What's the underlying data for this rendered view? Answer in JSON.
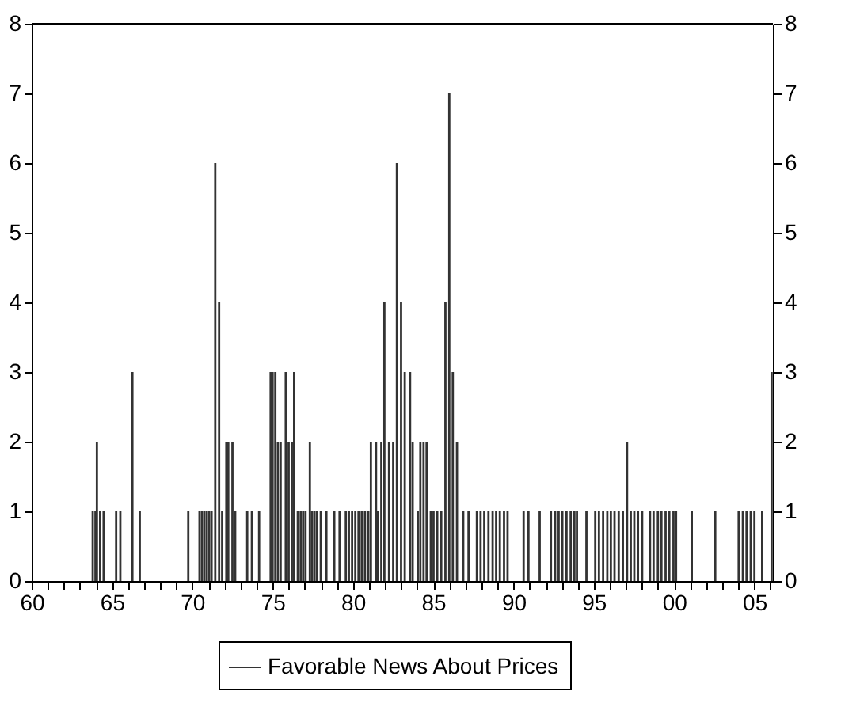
{
  "chart_data": {
    "type": "bar",
    "legend": "bottom",
    "grid": false,
    "x": [
      1963.8,
      1963.97,
      1964.06,
      1964.26,
      1964.48,
      1965.26,
      1965.52,
      1966.27,
      1966.73,
      1969.75,
      1970.45,
      1970.6,
      1970.75,
      1970.9,
      1971.05,
      1971.2,
      1971.43,
      1971.67,
      1971.86,
      1972.12,
      1972.24,
      1972.5,
      1972.67,
      1973.42,
      1973.71,
      1974.16,
      1974.88,
      1975.0,
      1975.17,
      1975.33,
      1975.5,
      1975.82,
      1976.0,
      1976.2,
      1976.34,
      1976.57,
      1976.75,
      1976.9,
      1977.05,
      1977.32,
      1977.45,
      1977.6,
      1977.75,
      1978.0,
      1978.35,
      1978.84,
      1979.17,
      1979.56,
      1979.75,
      1979.95,
      1980.15,
      1980.35,
      1980.55,
      1980.75,
      1980.96,
      1981.12,
      1981.44,
      1981.54,
      1981.77,
      1981.96,
      1982.25,
      1982.51,
      1982.74,
      1983.0,
      1983.23,
      1983.56,
      1983.72,
      1984.04,
      1984.2,
      1984.4,
      1984.59,
      1984.85,
      1985.02,
      1985.25,
      1985.5,
      1985.76,
      1986.0,
      1986.22,
      1986.48,
      1986.87,
      1987.2,
      1987.72,
      1987.95,
      1988.18,
      1988.44,
      1988.7,
      1988.92,
      1989.15,
      1989.41,
      1989.63,
      1990.63,
      1990.93,
      1991.63,
      1992.33,
      1992.59,
      1992.81,
      1993.04,
      1993.3,
      1993.56,
      1993.79,
      1993.95,
      1994.54,
      1995.09,
      1995.32,
      1995.58,
      1995.84,
      1996.06,
      1996.29,
      1996.55,
      1996.81,
      1997.07,
      1997.3,
      1997.52,
      1997.75,
      1998.01,
      1998.5,
      1998.72,
      1998.99,
      1999.21,
      1999.47,
      1999.7,
      1999.96,
      2000.12,
      2001.1,
      2002.56,
      2004.02,
      2004.28,
      2004.51,
      2004.77,
      2005.0,
      2005.48,
      2006.07
    ],
    "series": [
      {
        "name": "Favorable News About Prices",
        "color": "#333333",
        "values": [
          1,
          1,
          2,
          1,
          1,
          1,
          1,
          3,
          1,
          1,
          1,
          1,
          1,
          1,
          1,
          1,
          6,
          4,
          1,
          2,
          2,
          2,
          1,
          1,
          1,
          1,
          3,
          3,
          3,
          2,
          2,
          3,
          2,
          2,
          3,
          1,
          1,
          1,
          1,
          2,
          1,
          1,
          1,
          1,
          1,
          1,
          1,
          1,
          1,
          1,
          1,
          1,
          1,
          1,
          1,
          2,
          2,
          1,
          2,
          4,
          2,
          2,
          6,
          4,
          3,
          3,
          2,
          1,
          2,
          2,
          2,
          1,
          1,
          1,
          1,
          4,
          7,
          3,
          2,
          1,
          1,
          1,
          1,
          1,
          1,
          1,
          1,
          1,
          1,
          1,
          1,
          1,
          1,
          1,
          1,
          1,
          1,
          1,
          1,
          1,
          1,
          1,
          1,
          1,
          1,
          1,
          1,
          1,
          1,
          1,
          2,
          1,
          1,
          1,
          1,
          1,
          1,
          1,
          1,
          1,
          1,
          1,
          1,
          1,
          1,
          1,
          1,
          1,
          1,
          1,
          1,
          3
        ]
      }
    ],
    "xlim": [
      1960,
      2006.15
    ],
    "xticks": [
      {
        "value": 1960,
        "label": "60"
      },
      {
        "value": 1961,
        "label": null
      },
      {
        "value": 1962,
        "label": null
      },
      {
        "value": 1963,
        "label": null
      },
      {
        "value": 1964,
        "label": null
      },
      {
        "value": 1965,
        "label": "65"
      },
      {
        "value": 1966,
        "label": null
      },
      {
        "value": 1967,
        "label": null
      },
      {
        "value": 1968,
        "label": null
      },
      {
        "value": 1969,
        "label": null
      },
      {
        "value": 1970,
        "label": "70"
      },
      {
        "value": 1971,
        "label": null
      },
      {
        "value": 1972,
        "label": null
      },
      {
        "value": 1973,
        "label": null
      },
      {
        "value": 1974,
        "label": null
      },
      {
        "value": 1975,
        "label": "75"
      },
      {
        "value": 1976,
        "label": null
      },
      {
        "value": 1977,
        "label": null
      },
      {
        "value": 1978,
        "label": null
      },
      {
        "value": 1979,
        "label": null
      },
      {
        "value": 1980,
        "label": "80"
      },
      {
        "value": 1981,
        "label": null
      },
      {
        "value": 1982,
        "label": null
      },
      {
        "value": 1983,
        "label": null
      },
      {
        "value": 1984,
        "label": null
      },
      {
        "value": 1985,
        "label": "85"
      },
      {
        "value": 1986,
        "label": null
      },
      {
        "value": 1987,
        "label": null
      },
      {
        "value": 1988,
        "label": null
      },
      {
        "value": 1989,
        "label": null
      },
      {
        "value": 1990,
        "label": "90"
      },
      {
        "value": 1991,
        "label": null
      },
      {
        "value": 1992,
        "label": null
      },
      {
        "value": 1993,
        "label": null
      },
      {
        "value": 1994,
        "label": null
      },
      {
        "value": 1995,
        "label": "95"
      },
      {
        "value": 1996,
        "label": null
      },
      {
        "value": 1997,
        "label": null
      },
      {
        "value": 1998,
        "label": null
      },
      {
        "value": 1999,
        "label": null
      },
      {
        "value": 2000,
        "label": "00"
      },
      {
        "value": 2001,
        "label": null
      },
      {
        "value": 2002,
        "label": null
      },
      {
        "value": 2003,
        "label": null
      },
      {
        "value": 2004,
        "label": null
      },
      {
        "value": 2005,
        "label": "05"
      },
      {
        "value": 2006,
        "label": null
      }
    ],
    "ylim": [
      0,
      8
    ],
    "yticks": [
      0,
      1,
      2,
      3,
      4,
      5,
      6,
      7,
      8
    ],
    "y2lim": [
      0,
      8
    ],
    "y2ticks": [
      0,
      1,
      2,
      3,
      4,
      5,
      6,
      7,
      8
    ]
  }
}
